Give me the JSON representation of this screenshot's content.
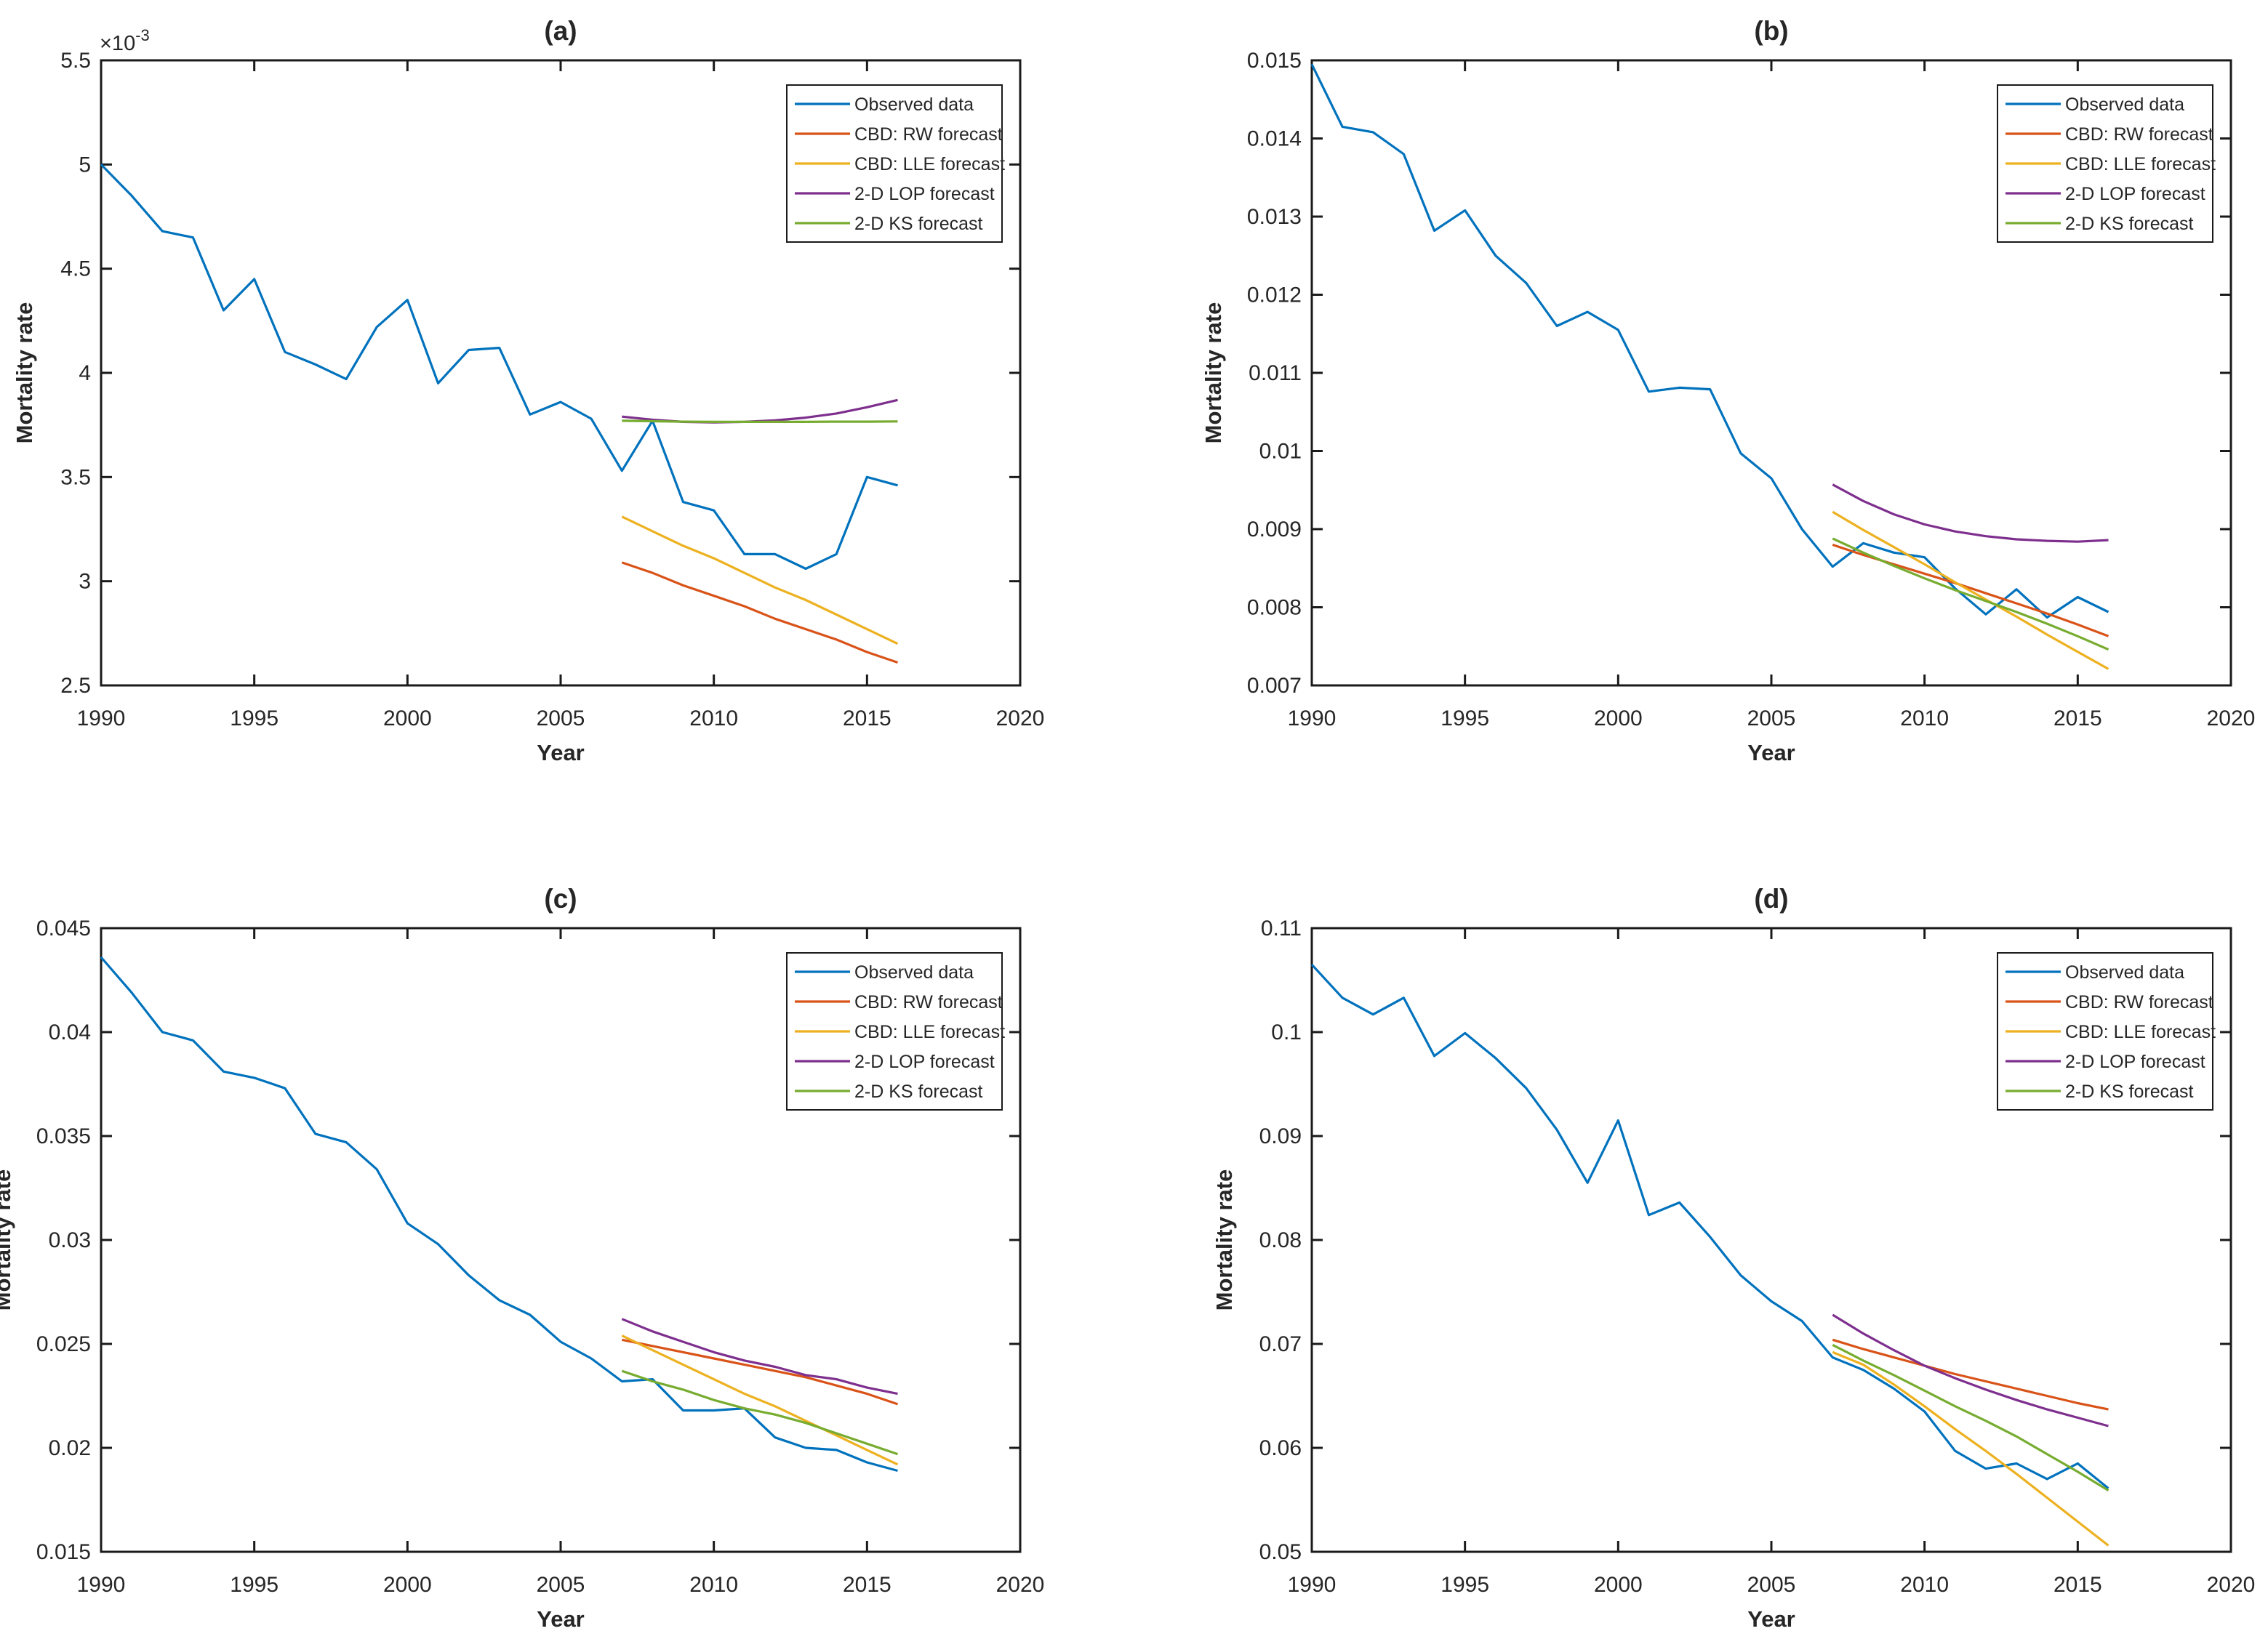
{
  "figure": {
    "description": "Four-panel MATLAB-style line figure of observed vs forecast mortality rates",
    "background": "#ffffff",
    "panel_labels": [
      "(a)",
      "(b)",
      "(c)",
      "(d)"
    ]
  },
  "legend": {
    "position": "top-right",
    "entries": [
      "Observed data",
      "CBD: RW forecast",
      "CBD: LLE forecast",
      "2-D LOP forecast",
      "2-D KS forecast"
    ],
    "colors": [
      "#0072BD",
      "#D95319",
      "#EDB120",
      "#7E2F8E",
      "#77AC30"
    ]
  },
  "chart_data": [
    {
      "id": "a",
      "type": "line",
      "title": "(a)",
      "xlabel": "Year",
      "ylabel": "Mortality rate",
      "grid": false,
      "legend_position": "top-right",
      "xlim": [
        1990,
        2020
      ],
      "ylim": [
        0.0025,
        0.0055
      ],
      "xtick_values": [
        1990,
        1995,
        2000,
        2005,
        2010,
        2015,
        2020
      ],
      "xtick_labels": [
        "1990",
        "1995",
        "2000",
        "2005",
        "2010",
        "2015",
        "2020"
      ],
      "ytick_values": [
        0.0025,
        0.003,
        0.0035,
        0.004,
        0.0045,
        0.005,
        0.0055
      ],
      "ytick_labels": [
        "2.5",
        "3",
        "3.5",
        "4",
        "4.5",
        "5",
        "5.5"
      ],
      "y_scale": {
        "base": "×10",
        "exp": "-3"
      },
      "series": [
        {
          "name": "Observed data",
          "color": "#0072BD",
          "x": [
            1990,
            1991,
            1992,
            1993,
            1994,
            1995,
            1996,
            1997,
            1998,
            1999,
            2000,
            2001,
            2002,
            2003,
            2004,
            2005,
            2006,
            2007,
            2008,
            2009,
            2010,
            2011,
            2012,
            2013,
            2014,
            2015,
            2016
          ],
          "y": [
            0.005,
            0.00485,
            0.00468,
            0.00465,
            0.0043,
            0.00445,
            0.0041,
            0.00404,
            0.00397,
            0.00422,
            0.00435,
            0.00395,
            0.00411,
            0.00412,
            0.0038,
            0.00386,
            0.00378,
            0.00353,
            0.00377,
            0.00338,
            0.00334,
            0.00313,
            0.00313,
            0.00306,
            0.00313,
            0.0035,
            0.00346
          ]
        },
        {
          "name": "CBD: RW forecast",
          "color": "#D95319",
          "x": [
            2007,
            2008,
            2009,
            2010,
            2011,
            2012,
            2013,
            2014,
            2015,
            2016
          ],
          "y": [
            0.00309,
            0.00304,
            0.00298,
            0.00293,
            0.00288,
            0.00282,
            0.00277,
            0.00272,
            0.00266,
            0.00261
          ]
        },
        {
          "name": "CBD: LLE forecast",
          "color": "#EDB120",
          "x": [
            2007,
            2008,
            2009,
            2010,
            2011,
            2012,
            2013,
            2014,
            2015,
            2016
          ],
          "y": [
            0.00331,
            0.00324,
            0.00317,
            0.00311,
            0.00304,
            0.00297,
            0.00291,
            0.00284,
            0.00277,
            0.0027
          ]
        },
        {
          "name": "2-D LOP forecast",
          "color": "#7E2F8E",
          "x": [
            2007,
            2008,
            2009,
            2010,
            2011,
            2012,
            2013,
            2014,
            2015,
            2016
          ],
          "y": [
            0.00379,
            0.003775,
            0.003765,
            0.003762,
            0.003765,
            0.003772,
            0.003785,
            0.003805,
            0.003835,
            0.00387
          ]
        },
        {
          "name": "2-D KS forecast",
          "color": "#77AC30",
          "x": [
            2007,
            2008,
            2009,
            2010,
            2011,
            2012,
            2013,
            2014,
            2015,
            2016
          ],
          "y": [
            0.00377,
            0.003768,
            0.003766,
            0.003765,
            0.003765,
            0.003765,
            0.003765,
            0.003766,
            0.003766,
            0.003767
          ]
        }
      ]
    },
    {
      "id": "b",
      "type": "line",
      "title": "(b)",
      "xlabel": "Year",
      "ylabel": "Mortality rate",
      "grid": false,
      "legend_position": "top-right",
      "xlim": [
        1990,
        2020
      ],
      "ylim": [
        0.007,
        0.015
      ],
      "xtick_values": [
        1990,
        1995,
        2000,
        2005,
        2010,
        2015,
        2020
      ],
      "xtick_labels": [
        "1990",
        "1995",
        "2000",
        "2005",
        "2010",
        "2015",
        "2020"
      ],
      "ytick_values": [
        0.007,
        0.008,
        0.009,
        0.01,
        0.011,
        0.012,
        0.013,
        0.014,
        0.015
      ],
      "ytick_labels": [
        "0.007",
        "0.008",
        "0.009",
        "0.01",
        "0.011",
        "0.012",
        "0.013",
        "0.014",
        "0.015"
      ],
      "y_scale": null,
      "series": [
        {
          "name": "Observed data",
          "color": "#0072BD",
          "x": [
            1990,
            1991,
            1992,
            1993,
            1994,
            1995,
            1996,
            1997,
            1998,
            1999,
            2000,
            2001,
            2002,
            2003,
            2004,
            2005,
            2006,
            2007,
            2008,
            2009,
            2010,
            2011,
            2012,
            2013,
            2014,
            2015,
            2016
          ],
          "y": [
            0.01495,
            0.01415,
            0.01408,
            0.0138,
            0.01282,
            0.01308,
            0.0125,
            0.01215,
            0.0116,
            0.01178,
            0.01155,
            0.01076,
            0.01081,
            0.01079,
            0.00997,
            0.00965,
            0.009,
            0.00852,
            0.00882,
            0.0087,
            0.00864,
            0.00824,
            0.00791,
            0.00823,
            0.00787,
            0.00813,
            0.00794
          ]
        },
        {
          "name": "CBD: RW forecast",
          "color": "#D95319",
          "x": [
            2007,
            2008,
            2009,
            2010,
            2011,
            2012,
            2013,
            2014,
            2015,
            2016
          ],
          "y": [
            0.0088,
            0.00867,
            0.00855,
            0.00843,
            0.00831,
            0.00818,
            0.00805,
            0.00792,
            0.00778,
            0.00763
          ]
        },
        {
          "name": "CBD: LLE forecast",
          "color": "#EDB120",
          "x": [
            2007,
            2008,
            2009,
            2010,
            2011,
            2012,
            2013,
            2014,
            2015,
            2016
          ],
          "y": [
            0.00922,
            0.00899,
            0.00877,
            0.00855,
            0.00832,
            0.0081,
            0.00788,
            0.00765,
            0.00743,
            0.00721
          ]
        },
        {
          "name": "2-D LOP forecast",
          "color": "#7E2F8E",
          "x": [
            2007,
            2008,
            2009,
            2010,
            2011,
            2012,
            2013,
            2014,
            2015,
            2016
          ],
          "y": [
            0.00957,
            0.00936,
            0.00919,
            0.00906,
            0.00897,
            0.00891,
            0.00887,
            0.00885,
            0.00884,
            0.00886
          ]
        },
        {
          "name": "2-D KS forecast",
          "color": "#77AC30",
          "x": [
            2007,
            2008,
            2009,
            2010,
            2011,
            2012,
            2013,
            2014,
            2015,
            2016
          ],
          "y": [
            0.00888,
            0.0087,
            0.00853,
            0.00837,
            0.00822,
            0.00808,
            0.00794,
            0.00779,
            0.00763,
            0.00746
          ]
        }
      ]
    },
    {
      "id": "c",
      "type": "line",
      "title": "(c)",
      "xlabel": "Year",
      "ylabel": "Mortality rate",
      "grid": false,
      "legend_position": "top-right",
      "xlim": [
        1990,
        2020
      ],
      "ylim": [
        0.015,
        0.045
      ],
      "xtick_values": [
        1990,
        1995,
        2000,
        2005,
        2010,
        2015,
        2020
      ],
      "xtick_labels": [
        "1990",
        "1995",
        "2000",
        "2005",
        "2010",
        "2015",
        "2020"
      ],
      "ytick_values": [
        0.015,
        0.02,
        0.025,
        0.03,
        0.035,
        0.04,
        0.045
      ],
      "ytick_labels": [
        "0.015",
        "0.02",
        "0.025",
        "0.03",
        "0.035",
        "0.04",
        "0.045"
      ],
      "y_scale": null,
      "series": [
        {
          "name": "Observed data",
          "color": "#0072BD",
          "x": [
            1990,
            1991,
            1992,
            1993,
            1994,
            1995,
            1996,
            1997,
            1998,
            1999,
            2000,
            2001,
            2002,
            2003,
            2004,
            2005,
            2006,
            2007,
            2008,
            2009,
            2010,
            2011,
            2012,
            2013,
            2014,
            2015,
            2016
          ],
          "y": [
            0.0436,
            0.0419,
            0.04,
            0.0396,
            0.0381,
            0.0378,
            0.0373,
            0.0351,
            0.0347,
            0.0334,
            0.0308,
            0.0298,
            0.0283,
            0.0271,
            0.0264,
            0.0251,
            0.0243,
            0.0232,
            0.0233,
            0.0218,
            0.0218,
            0.0219,
            0.0205,
            0.02,
            0.0199,
            0.0193,
            0.0189
          ]
        },
        {
          "name": "CBD: RW forecast",
          "color": "#D95319",
          "x": [
            2007,
            2008,
            2009,
            2010,
            2011,
            2012,
            2013,
            2014,
            2015,
            2016
          ],
          "y": [
            0.0252,
            0.0249,
            0.0246,
            0.0243,
            0.024,
            0.0237,
            0.0234,
            0.023,
            0.0226,
            0.0221
          ]
        },
        {
          "name": "CBD: LLE forecast",
          "color": "#EDB120",
          "x": [
            2007,
            2008,
            2009,
            2010,
            2011,
            2012,
            2013,
            2014,
            2015,
            2016
          ],
          "y": [
            0.0254,
            0.0247,
            0.024,
            0.0233,
            0.0226,
            0.022,
            0.0213,
            0.0206,
            0.0199,
            0.0192
          ]
        },
        {
          "name": "2-D LOP forecast",
          "color": "#7E2F8E",
          "x": [
            2007,
            2008,
            2009,
            2010,
            2011,
            2012,
            2013,
            2014,
            2015,
            2016
          ],
          "y": [
            0.0262,
            0.0256,
            0.0251,
            0.0246,
            0.0242,
            0.0239,
            0.0235,
            0.0233,
            0.0229,
            0.0226
          ]
        },
        {
          "name": "2-D KS forecast",
          "color": "#77AC30",
          "x": [
            2007,
            2008,
            2009,
            2010,
            2011,
            2012,
            2013,
            2014,
            2015,
            2016
          ],
          "y": [
            0.0237,
            0.0232,
            0.0228,
            0.0223,
            0.0219,
            0.0216,
            0.0212,
            0.0207,
            0.0202,
            0.0197
          ]
        }
      ]
    },
    {
      "id": "d",
      "type": "line",
      "title": "(d)",
      "xlabel": "Year",
      "ylabel": "Mortality rate",
      "grid": false,
      "legend_position": "top-right",
      "xlim": [
        1990,
        2020
      ],
      "ylim": [
        0.05,
        0.11
      ],
      "xtick_values": [
        1990,
        1995,
        2000,
        2005,
        2010,
        2015,
        2020
      ],
      "xtick_labels": [
        "1990",
        "1995",
        "2000",
        "2005",
        "2010",
        "2015",
        "2020"
      ],
      "ytick_values": [
        0.05,
        0.06,
        0.07,
        0.08,
        0.09,
        0.1,
        0.11
      ],
      "ytick_labels": [
        "0.05",
        "0.06",
        "0.07",
        "0.08",
        "0.09",
        "0.1",
        "0.11"
      ],
      "y_scale": null,
      "series": [
        {
          "name": "Observed data",
          "color": "#0072BD",
          "x": [
            1990,
            1991,
            1992,
            1993,
            1994,
            1995,
            1996,
            1997,
            1998,
            1999,
            2000,
            2001,
            2002,
            2003,
            2004,
            2005,
            2006,
            2007,
            2008,
            2009,
            2010,
            2011,
            2012,
            2013,
            2014,
            2015,
            2016
          ],
          "y": [
            0.1065,
            0.1033,
            0.1017,
            0.1033,
            0.0977,
            0.0999,
            0.0975,
            0.0946,
            0.0906,
            0.0855,
            0.0915,
            0.0824,
            0.0836,
            0.0803,
            0.0766,
            0.0741,
            0.0722,
            0.0687,
            0.0675,
            0.0657,
            0.0635,
            0.0597,
            0.058,
            0.0585,
            0.057,
            0.0585,
            0.0561
          ]
        },
        {
          "name": "CBD: RW forecast",
          "color": "#D95319",
          "x": [
            2007,
            2008,
            2009,
            2010,
            2011,
            2012,
            2013,
            2014,
            2015,
            2016
          ],
          "y": [
            0.0704,
            0.0695,
            0.0687,
            0.0679,
            0.0671,
            0.0664,
            0.0657,
            0.065,
            0.0643,
            0.0637
          ]
        },
        {
          "name": "CBD: LLE forecast",
          "color": "#EDB120",
          "x": [
            2007,
            2008,
            2009,
            2010,
            2011,
            2012,
            2013,
            2014,
            2015,
            2016
          ],
          "y": [
            0.0692,
            0.068,
            0.0661,
            0.064,
            0.0618,
            0.0597,
            0.0575,
            0.0552,
            0.0529,
            0.0506
          ]
        },
        {
          "name": "2-D LOP forecast",
          "color": "#7E2F8E",
          "x": [
            2007,
            2008,
            2009,
            2010,
            2011,
            2012,
            2013,
            2014,
            2015,
            2016
          ],
          "y": [
            0.0728,
            0.071,
            0.0694,
            0.0679,
            0.0667,
            0.0656,
            0.0646,
            0.0637,
            0.0629,
            0.0621
          ]
        },
        {
          "name": "2-D KS forecast",
          "color": "#77AC30",
          "x": [
            2007,
            2008,
            2009,
            2010,
            2011,
            2012,
            2013,
            2014,
            2015,
            2016
          ],
          "y": [
            0.0699,
            0.0684,
            0.067,
            0.0655,
            0.064,
            0.0626,
            0.0611,
            0.0594,
            0.0577,
            0.0559
          ]
        }
      ]
    }
  ]
}
